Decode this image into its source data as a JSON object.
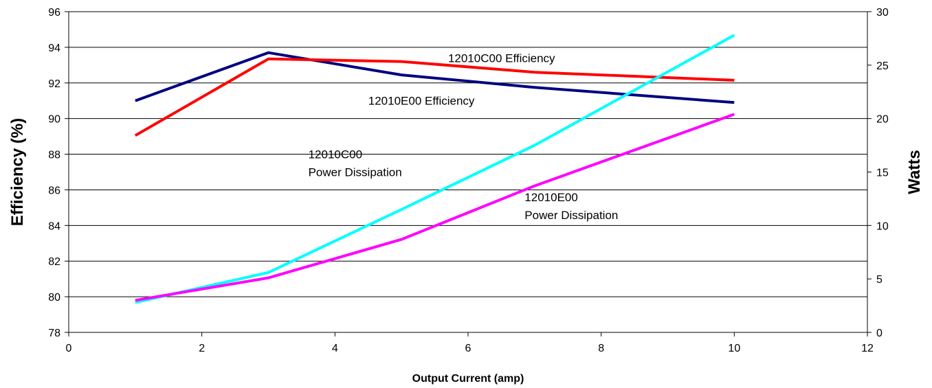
{
  "chart_data": {
    "type": "line",
    "title": "",
    "xlabel": "Output Current (amp)",
    "ylabel": "Efficiency (%)",
    "y2label": "Watts",
    "xlim": [
      0,
      12
    ],
    "xticks": [
      0,
      2,
      4,
      6,
      8,
      10,
      12
    ],
    "ylim": [
      78,
      96
    ],
    "yticks": [
      78,
      80,
      82,
      84,
      86,
      88,
      90,
      92,
      94,
      96
    ],
    "y2lim": [
      0,
      30
    ],
    "y2ticks": [
      0,
      5,
      10,
      15,
      20,
      25,
      30
    ],
    "grid": "horizontal",
    "series": [
      {
        "axis": "left",
        "color": "#000080",
        "x": [
          1,
          3,
          5,
          7,
          10
        ],
        "y": [
          91.0,
          93.7,
          92.45,
          91.75,
          90.9
        ]
      },
      {
        "axis": "left",
        "color": "#ff0000",
        "x": [
          1,
          3,
          5,
          7,
          10
        ],
        "y": [
          89.05,
          93.35,
          93.2,
          92.6,
          92.15
        ]
      },
      {
        "axis": "right",
        "color": "#00ffff",
        "x": [
          1,
          3,
          5,
          7,
          10
        ],
        "y": [
          2.8,
          5.6,
          11.5,
          17.5,
          27.8
        ]
      },
      {
        "axis": "right",
        "color": "#ff00ff",
        "x": [
          1,
          3,
          5,
          7,
          10
        ],
        "y": [
          3.0,
          5.1,
          8.7,
          13.7,
          20.4
        ]
      }
    ],
    "annotations": [
      {
        "lines": [
          "12010C00 Efficiency"
        ],
        "x": 5.7,
        "y": 93.4
      },
      {
        "lines": [
          "12010E00 Efficiency"
        ],
        "x": 4.5,
        "y": 91.0
      },
      {
        "lines": [
          "12010C00",
          "Power Dissipation"
        ],
        "x": 3.6,
        "y": 88.0
      },
      {
        "lines": [
          "12010E00",
          "Power Dissipation"
        ],
        "x": 6.85,
        "y": 85.6
      }
    ]
  }
}
